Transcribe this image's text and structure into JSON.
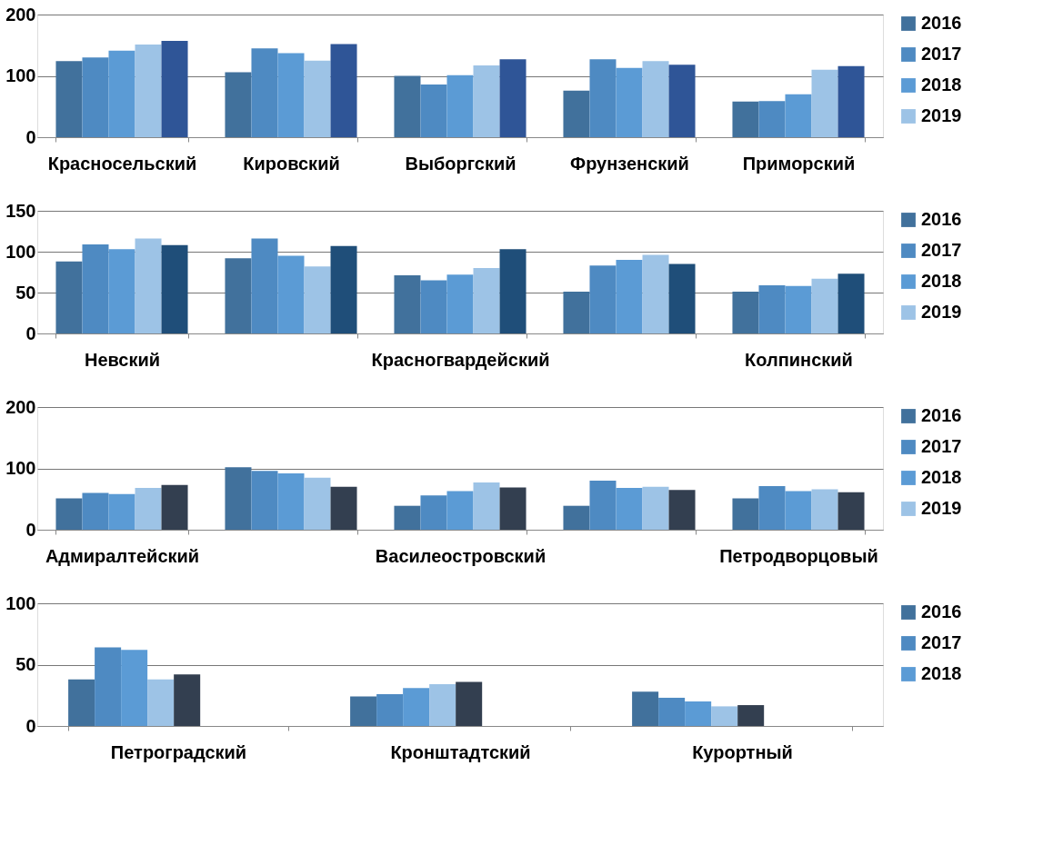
{
  "chart_data": [
    {
      "type": "bar",
      "categories": [
        "Красносельский",
        "Кировский",
        "Выборгский",
        "Фрунзенский",
        "Приморский"
      ],
      "ylim": [
        0,
        200
      ],
      "yticks": [
        0,
        100,
        200
      ],
      "grid": "y",
      "legend": "right",
      "series": [
        {
          "name": "2016",
          "color": "#41719c",
          "values": [
            124,
            106,
            100,
            76,
            58
          ]
        },
        {
          "name": "2017",
          "color": "#4e8ac2",
          "values": [
            130,
            145,
            86,
            127,
            59
          ]
        },
        {
          "name": "2018",
          "color": "#5b9bd5",
          "values": [
            141,
            137,
            101,
            113,
            70
          ]
        },
        {
          "name": "2019",
          "color": "#9dc3e6",
          "values": [
            151,
            125,
            117,
            124,
            110
          ]
        },
        {
          "color": "#2f5597",
          "values": [
            157,
            152,
            127,
            118,
            116
          ]
        }
      ]
    },
    {
      "type": "bar",
      "categories": [
        "Невский",
        null,
        "Красногвардейский",
        null,
        "Колпинский"
      ],
      "ylim": [
        0,
        150
      ],
      "yticks": [
        0,
        50,
        100,
        150
      ],
      "grid": "y",
      "legend": "right",
      "series": [
        {
          "name": "2016",
          "color": "#41719c",
          "values": [
            88,
            92,
            71,
            51,
            51
          ]
        },
        {
          "name": "2017",
          "color": "#4e8ac2",
          "values": [
            109,
            116,
            65,
            83,
            59
          ]
        },
        {
          "name": "2018",
          "color": "#5b9bd5",
          "values": [
            103,
            95,
            72,
            90,
            58
          ]
        },
        {
          "name": "2019",
          "color": "#9dc3e6",
          "values": [
            116,
            82,
            80,
            96,
            67
          ]
        },
        {
          "color": "#1f4e79",
          "values": [
            108,
            107,
            103,
            85,
            73
          ]
        }
      ]
    },
    {
      "type": "bar",
      "categories": [
        "Адмиралтейский",
        null,
        "Василеостровский",
        null,
        "Петродворцовый"
      ],
      "ylim": [
        0,
        200
      ],
      "yticks": [
        0,
        100,
        200
      ],
      "grid": "y",
      "legend": "right",
      "series": [
        {
          "name": "2016",
          "color": "#41719c",
          "values": [
            51,
            102,
            39,
            39,
            51
          ]
        },
        {
          "name": "2017",
          "color": "#4e8ac2",
          "values": [
            60,
            96,
            56,
            80,
            71
          ]
        },
        {
          "name": "2018",
          "color": "#5b9bd5",
          "values": [
            58,
            92,
            63,
            68,
            63
          ]
        },
        {
          "name": "2019",
          "color": "#9dc3e6",
          "values": [
            68,
            85,
            77,
            70,
            66
          ]
        },
        {
          "color": "#333f50",
          "values": [
            73,
            70,
            69,
            65,
            61
          ]
        }
      ]
    },
    {
      "type": "bar",
      "categories": [
        "Петроградский",
        "Кронштадтский",
        "Курортный"
      ],
      "ylim": [
        0,
        100
      ],
      "yticks": [
        0,
        50,
        100
      ],
      "grid": "y",
      "legend": "right",
      "series": [
        {
          "name": "2016",
          "color": "#41719c",
          "values": [
            38,
            24,
            28
          ]
        },
        {
          "name": "2017",
          "color": "#4e8ac2",
          "values": [
            64,
            26,
            23
          ]
        },
        {
          "name": "2018",
          "color": "#5b9bd5",
          "values": [
            62,
            31,
            20
          ]
        },
        {
          "color": "#9dc3e6",
          "values": [
            38,
            34,
            16
          ]
        },
        {
          "color": "#333f50",
          "values": [
            42,
            36,
            17
          ]
        }
      ]
    }
  ]
}
